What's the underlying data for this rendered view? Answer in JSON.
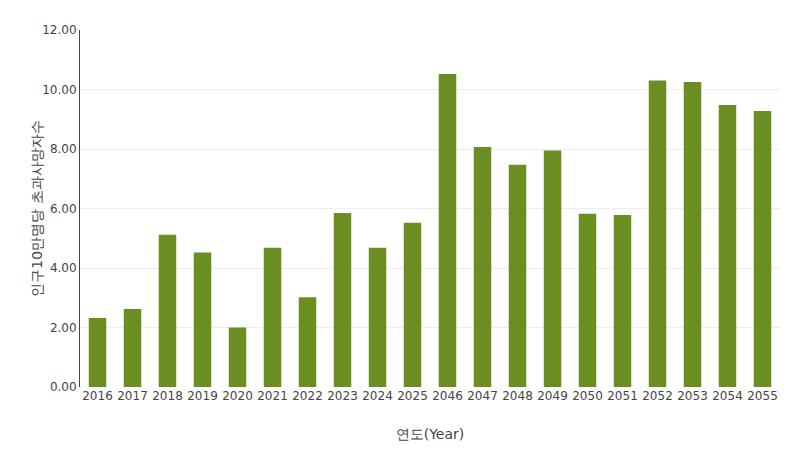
{
  "chart_data": {
    "type": "bar",
    "xlabel": "연도(Year)",
    "ylabel": "인구10만명당 초과사망자수",
    "categories": [
      "2016",
      "2017",
      "2018",
      "2019",
      "2020",
      "2021",
      "2022",
      "2023",
      "2024",
      "2025",
      "2046",
      "2047",
      "2048",
      "2049",
      "2050",
      "2051",
      "2052",
      "2053",
      "2054",
      "2055"
    ],
    "values": [
      2.32,
      2.62,
      5.12,
      4.52,
      2.0,
      4.68,
      3.02,
      5.85,
      4.68,
      5.52,
      10.52,
      8.07,
      7.47,
      7.95,
      5.82,
      5.78,
      10.3,
      10.25,
      9.48,
      9.28
    ],
    "color": "#6B8E23",
    "ylim": [
      0,
      12.0
    ],
    "yticks": [
      {
        "value": 0,
        "label": "0.00"
      },
      {
        "value": 2,
        "label": "2.00"
      },
      {
        "value": 4,
        "label": "4.00"
      },
      {
        "value": 6,
        "label": "6.00"
      },
      {
        "value": 8,
        "label": "8.00"
      },
      {
        "value": 10,
        "label": "10.00"
      },
      {
        "value": 12,
        "label": "12.00"
      }
    ],
    "grid": true
  }
}
